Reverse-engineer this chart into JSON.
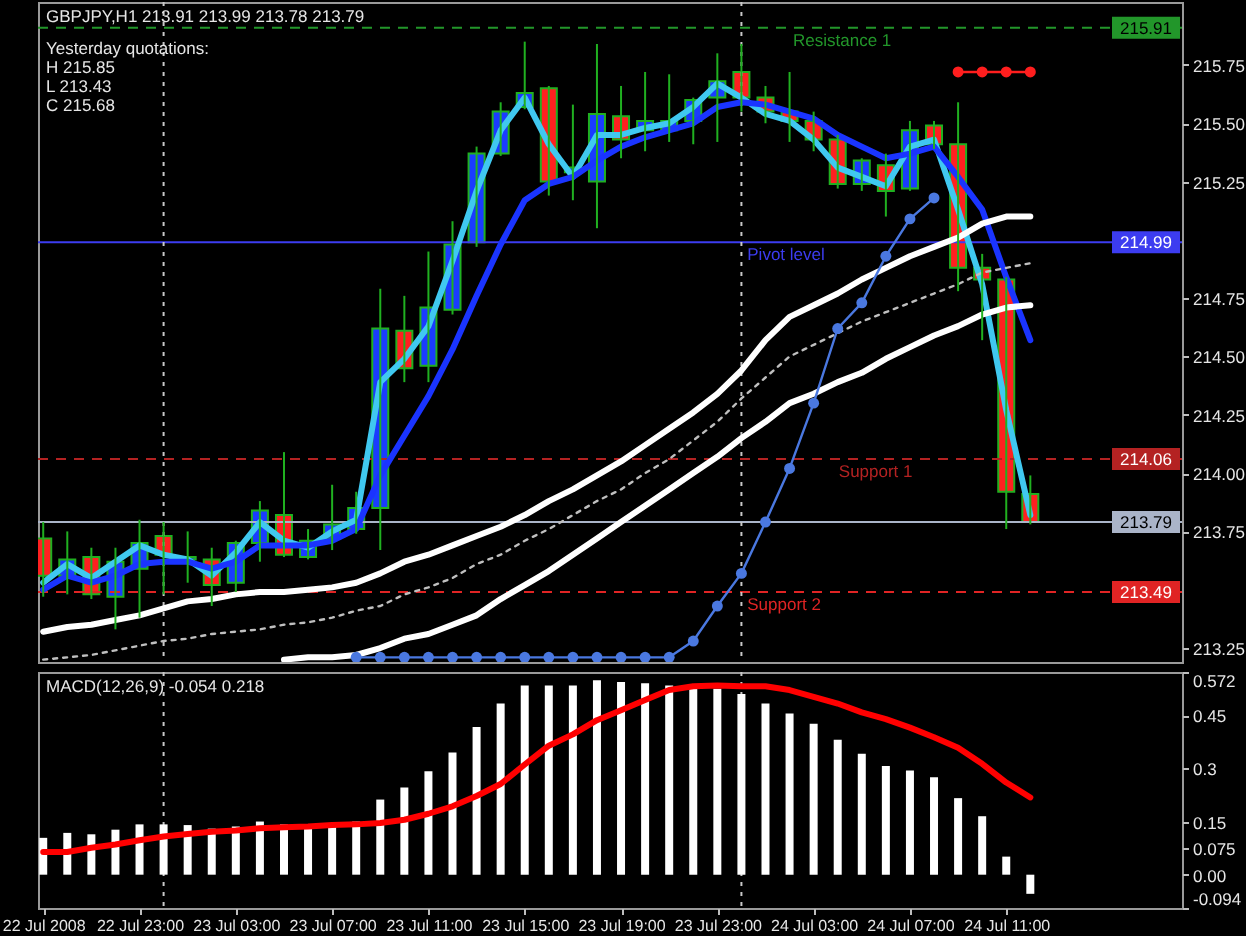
{
  "chart_data": [
    {
      "type": "candlestick",
      "title": "GBPJPY,H1 213.91 213.99 213.78 213.79",
      "annotations": [
        "Yesterday quotations:",
        "H 215.85",
        "L 213.43",
        "C 215.68",
        {
          "text": "215.91",
          "x": "2008-07-24T18:18",
          "y": 215.91
        },
        {
          "text": "214.99",
          "x": "2008-07-24T18:18",
          "y": 214.99
        },
        {
          "text": "214.06",
          "x": "2008-07-24T18:18",
          "y": 214.06
        },
        {
          "text": "213.79",
          "x": "2008-07-24T18:18",
          "y": 213.79
        },
        {
          "text": "213.49",
          "x": "2008-07-24T18:18",
          "y": 213.49
        }
      ],
      "x": [
        "2008-07-22T19:00",
        "2008-07-22T20:00",
        "2008-07-22T21:00",
        "2008-07-22T22:00",
        "2008-07-22T23:00",
        "2008-07-23T00:00",
        "2008-07-23T01:00",
        "2008-07-23T02:00",
        "2008-07-23T03:00",
        "2008-07-23T04:00",
        "2008-07-23T05:00",
        "2008-07-23T06:00",
        "2008-07-23T07:00",
        "2008-07-23T08:00",
        "2008-07-23T09:00",
        "2008-07-23T10:00",
        "2008-07-23T11:00",
        "2008-07-23T12:00",
        "2008-07-23T13:00",
        "2008-07-23T14:00",
        "2008-07-23T15:00",
        "2008-07-23T16:00",
        "2008-07-23T17:00",
        "2008-07-23T18:00",
        "2008-07-23T19:00",
        "2008-07-23T20:00",
        "2008-07-23T21:00",
        "2008-07-23T22:00",
        "2008-07-23T23:00",
        "2008-07-24T00:00",
        "2008-07-24T01:00",
        "2008-07-24T02:00",
        "2008-07-24T03:00",
        "2008-07-24T04:00",
        "2008-07-24T05:00",
        "2008-07-24T06:00",
        "2008-07-24T07:00",
        "2008-07-24T08:00",
        "2008-07-24T09:00",
        "2008-07-24T10:00",
        "2008-07-24T11:00",
        "2008-07-24T12:00"
      ],
      "ohlc": [
        [
          213.72,
          213.79,
          213.47,
          213.56
        ],
        [
          213.56,
          213.75,
          213.48,
          213.63
        ],
        [
          213.64,
          213.68,
          213.46,
          213.48
        ],
        [
          213.47,
          213.68,
          213.33,
          213.62
        ],
        [
          213.59,
          213.8,
          213.38,
          213.7
        ],
        [
          213.73,
          213.79,
          213.48,
          213.65
        ],
        [
          213.63,
          213.75,
          213.53,
          213.64
        ],
        [
          213.63,
          213.68,
          213.43,
          213.52
        ],
        [
          213.53,
          213.71,
          213.49,
          213.7
        ],
        [
          213.7,
          213.88,
          213.62,
          213.84
        ],
        [
          213.82,
          214.09,
          213.64,
          213.65
        ],
        [
          213.64,
          213.76,
          213.63,
          213.71
        ],
        [
          213.72,
          213.95,
          213.67,
          213.78
        ],
        [
          213.76,
          213.92,
          213.74,
          213.85
        ],
        [
          213.85,
          214.79,
          213.67,
          214.62
        ],
        [
          214.61,
          214.76,
          214.39,
          214.45
        ],
        [
          214.46,
          214.95,
          214.39,
          214.71
        ],
        [
          214.7,
          215.08,
          214.68,
          214.98
        ],
        [
          214.99,
          215.4,
          214.97,
          215.37
        ],
        [
          215.37,
          215.59,
          215.36,
          215.55
        ],
        [
          215.57,
          215.85,
          215.56,
          215.63
        ],
        [
          215.65,
          215.66,
          215.19,
          215.25
        ],
        [
          215.29,
          215.58,
          215.17,
          215.31
        ],
        [
          215.25,
          215.84,
          215.05,
          215.54
        ],
        [
          215.53,
          215.66,
          215.35,
          215.43
        ],
        [
          215.47,
          215.72,
          215.38,
          215.51
        ],
        [
          215.47,
          215.71,
          215.42,
          215.51
        ],
        [
          215.51,
          215.61,
          215.41,
          215.6
        ],
        [
          215.61,
          215.8,
          215.42,
          215.68
        ],
        [
          215.72,
          215.84,
          215.55,
          215.61
        ],
        [
          215.61,
          215.66,
          215.5,
          215.55
        ],
        [
          215.55,
          215.72,
          215.42,
          215.51
        ],
        [
          215.51,
          215.55,
          215.38,
          215.43
        ],
        [
          215.43,
          215.45,
          215.22,
          215.24
        ],
        [
          215.24,
          215.35,
          215.21,
          215.34
        ],
        [
          215.32,
          215.37,
          215.1,
          215.21
        ],
        [
          215.22,
          215.51,
          215.21,
          215.47
        ],
        [
          215.49,
          215.51,
          215.39,
          215.41
        ],
        [
          215.41,
          215.59,
          214.78,
          214.88
        ],
        [
          214.88,
          214.94,
          214.57,
          214.83
        ],
        [
          214.83,
          214.84,
          213.76,
          213.92
        ],
        [
          213.91,
          213.99,
          213.78,
          213.79
        ]
      ],
      "colors": [
        "#ff2020",
        "#1a3cff",
        "#ff2020",
        "#1a3cff",
        "#1a3cff",
        "#ff2020",
        "#1a3cff",
        "#ff2020",
        "#1a3cff",
        "#1a3cff",
        "#ff2020",
        "#1a3cff",
        "#1a3cff",
        "#1a3cff",
        "#1a3cff",
        "#ff2020",
        "#1a3cff",
        "#1a3cff",
        "#1a3cff",
        "#1a3cff",
        "#1a3cff",
        "#ff2020",
        "#1a3cff",
        "#1a3cff",
        "#ff2020",
        "#1a3cff",
        "#1a3cff",
        "#1a3cff",
        "#1a3cff",
        "#ff2020",
        "#ff2020",
        "#ff2020",
        "#ff2020",
        "#ff2020",
        "#1a3cff",
        "#ff2020",
        "#1a3cff",
        "#ff2020",
        "#ff2020",
        "#ff2020",
        "#ff2020",
        "#ff2020"
      ],
      "color": "#20b020",
      "series": [
        {
          "type": "line",
          "color": "#40c8f0",
          "values": [
            213.53,
            213.61,
            213.55,
            213.62,
            213.69,
            213.65,
            213.63,
            213.56,
            213.66,
            213.79,
            213.71,
            213.68,
            213.75,
            213.8,
            214.39,
            214.49,
            214.63,
            214.91,
            215.21,
            215.47,
            215.61,
            215.41,
            215.27,
            215.45,
            215.45,
            215.48,
            215.5,
            215.57,
            215.67,
            215.61,
            215.54,
            215.51,
            215.43,
            215.31,
            215.27,
            215.23,
            215.4,
            215.43,
            215.13,
            214.81,
            214.27,
            213.82
          ]
        },
        {
          "type": "line",
          "color": "#1a34ff",
          "values": [
            213.5,
            213.56,
            213.53,
            213.56,
            213.61,
            213.62,
            213.62,
            213.59,
            213.62,
            213.69,
            213.69,
            213.69,
            213.71,
            213.76,
            213.99,
            214.16,
            214.33,
            214.53,
            214.76,
            214.98,
            215.17,
            215.24,
            215.27,
            215.34,
            215.4,
            215.44,
            215.47,
            215.5,
            215.57,
            215.59,
            215.58,
            215.55,
            215.52,
            215.45,
            215.4,
            215.35,
            215.37,
            215.4,
            215.27,
            215.13,
            214.84,
            214.57
          ]
        },
        {
          "type": "line",
          "color": "#ffffff",
          "values": [
            213.32,
            213.34,
            213.35,
            213.37,
            213.39,
            213.42,
            213.45,
            213.46,
            213.48,
            213.49,
            213.49,
            213.5,
            213.51,
            213.53,
            213.57,
            213.62,
            213.65,
            213.69,
            213.73,
            213.77,
            213.82,
            213.88,
            213.93,
            213.99,
            214.05,
            214.12,
            214.19,
            214.26,
            214.34,
            214.44,
            214.57,
            214.67,
            214.72,
            214.77,
            214.83,
            214.88,
            214.93,
            214.97,
            215.01,
            215.07,
            215.1,
            215.1
          ]
        },
        {
          "type": "line",
          "color": "#bfbfbf",
          "line_style": "dotted",
          "values": [
            213.2,
            213.21,
            213.22,
            213.24,
            213.26,
            213.28,
            213.29,
            213.31,
            213.32,
            213.33,
            213.35,
            213.36,
            213.38,
            213.41,
            213.43,
            213.48,
            213.51,
            213.55,
            213.61,
            213.65,
            213.71,
            213.76,
            213.82,
            213.88,
            213.93,
            214.0,
            214.06,
            214.14,
            214.22,
            214.32,
            214.41,
            214.5,
            214.55,
            214.6,
            214.65,
            214.69,
            214.73,
            214.77,
            214.81,
            214.86,
            214.88,
            214.9
          ]
        },
        {
          "type": "line",
          "color": "#ffffff",
          "values": [
            null,
            null,
            null,
            null,
            null,
            null,
            null,
            null,
            null,
            null,
            213.2,
            213.21,
            213.21,
            213.22,
            213.25,
            213.29,
            213.31,
            213.35,
            213.39,
            213.46,
            213.52,
            213.58,
            213.65,
            213.72,
            213.79,
            213.86,
            213.93,
            214.0,
            214.07,
            214.15,
            214.22,
            214.3,
            214.34,
            214.39,
            214.43,
            214.49,
            214.54,
            214.59,
            214.63,
            214.68,
            214.71,
            214.72
          ]
        },
        {
          "type": "line",
          "color": "#4a78e0",
          "marker": "circle",
          "values": [
            null,
            null,
            null,
            null,
            null,
            null,
            null,
            null,
            null,
            null,
            null,
            null,
            null,
            213.21,
            213.21,
            213.21,
            213.21,
            213.21,
            213.21,
            213.21,
            213.21,
            213.21,
            213.21,
            213.21,
            213.21,
            213.21,
            213.21,
            213.28,
            213.43,
            213.57,
            213.79,
            214.02,
            214.3,
            214.62,
            214.73,
            214.93,
            215.09,
            215.18,
            null,
            null,
            null,
            null
          ]
        },
        {
          "type": "line",
          "color": "#ff1e1e",
          "marker": "circle",
          "values": [
            null,
            null,
            null,
            null,
            null,
            null,
            null,
            null,
            null,
            null,
            null,
            null,
            null,
            null,
            null,
            null,
            null,
            null,
            null,
            null,
            null,
            null,
            null,
            null,
            null,
            null,
            null,
            null,
            null,
            null,
            null,
            null,
            null,
            null,
            null,
            null,
            null,
            null,
            215.72,
            215.72,
            215.72,
            215.72
          ]
        }
      ],
      "xlim": [
        "2008-07-22T18:47",
        "2008-07-24T18:18"
      ],
      "ylim": [
        213.19,
        216.02
      ],
      "yticks": [
        213.25,
        213.75,
        {
          "value": 214,
          "label": "214.00"
        },
        214.25,
        {
          "value": 214.5,
          "label": "214.50"
        },
        214.75,
        215.25,
        {
          "value": 215.5,
          "label": "215.50"
        },
        215.75
      ],
      "ref_lines": [
        {
          "axis": "y",
          "value": 215.91,
          "label": "Resistance 1",
          "color": "#22962a",
          "line_style": "dashed"
        },
        {
          "axis": "y",
          "value": 214.99,
          "label": "Pivot level",
          "color": "#3c3cf0",
          "line_style": "solid"
        },
        {
          "axis": "y",
          "value": 214.06,
          "label": "Support 1",
          "color": "#b42222",
          "line_style": "dashed"
        },
        {
          "axis": "y",
          "value": 213.49,
          "label": "Support 2",
          "color": "#e02424",
          "line_style": "dashed"
        },
        {
          "axis": "y",
          "value": 213.79,
          "color": "#aab4c8",
          "line_style": "solid"
        },
        {
          "axis": "x",
          "value": "2008-07-23T00:00",
          "color": "#c8c8c8",
          "line_style": "dotted"
        },
        {
          "axis": "x",
          "value": "2008-07-24T00:00",
          "color": "#c8c8c8",
          "line_style": "dotted"
        }
      ],
      "tick_labels": "y"
    },
    {
      "type": "bar",
      "title": "MACD(12,26,9) -0.054 0.218",
      "x": [
        "2008-07-22T19:00",
        "2008-07-22T20:00",
        "2008-07-22T21:00",
        "2008-07-22T22:00",
        "2008-07-22T23:00",
        "2008-07-23T00:00",
        "2008-07-23T01:00",
        "2008-07-23T02:00",
        "2008-07-23T03:00",
        "2008-07-23T04:00",
        "2008-07-23T05:00",
        "2008-07-23T06:00",
        "2008-07-23T07:00",
        "2008-07-23T08:00",
        "2008-07-23T09:00",
        "2008-07-23T10:00",
        "2008-07-23T11:00",
        "2008-07-23T12:00",
        "2008-07-23T13:00",
        "2008-07-23T14:00",
        "2008-07-23T15:00",
        "2008-07-23T16:00",
        "2008-07-23T17:00",
        "2008-07-23T18:00",
        "2008-07-23T19:00",
        "2008-07-23T20:00",
        "2008-07-23T21:00",
        "2008-07-23T22:00",
        "2008-07-23T23:00",
        "2008-07-24T00:00",
        "2008-07-24T01:00",
        "2008-07-24T02:00",
        "2008-07-24T03:00",
        "2008-07-24T04:00",
        "2008-07-24T05:00",
        "2008-07-24T06:00",
        "2008-07-24T07:00",
        "2008-07-24T08:00",
        "2008-07-24T09:00",
        "2008-07-24T10:00",
        "2008-07-24T11:00",
        "2008-07-24T12:00"
      ],
      "series": [
        {
          "color": "#ffffff",
          "values": [
            0.104,
            0.118,
            0.114,
            0.127,
            0.142,
            0.142,
            0.14,
            0.13,
            0.136,
            0.15,
            0.142,
            0.132,
            0.14,
            0.15,
            0.212,
            0.246,
            0.292,
            0.345,
            0.417,
            0.483,
            0.534,
            0.534,
            0.534,
            0.549,
            0.544,
            0.54,
            0.534,
            0.534,
            0.525,
            0.51,
            0.483,
            0.455,
            0.426,
            0.381,
            0.341,
            0.307,
            0.294,
            0.275,
            0.216,
            0.165,
            0.051,
            -0.054
          ]
        },
        {
          "type": "line",
          "color": "#ff0000",
          "values": [
            0.064,
            0.064,
            0.076,
            0.085,
            0.097,
            0.108,
            0.115,
            0.121,
            0.125,
            0.131,
            0.134,
            0.136,
            0.14,
            0.142,
            0.146,
            0.155,
            0.172,
            0.193,
            0.222,
            0.256,
            0.311,
            0.364,
            0.396,
            0.436,
            0.464,
            0.493,
            0.521,
            0.532,
            0.534,
            0.532,
            0.532,
            0.521,
            0.502,
            0.483,
            0.458,
            0.439,
            0.415,
            0.388,
            0.358,
            0.313,
            0.26,
            0.218
          ]
        }
      ],
      "xlim": [
        "2008-07-22T18:47",
        "2008-07-24T18:18"
      ],
      "xticks": [
        {
          "value": "2008-07-22T19:00",
          "label": "22 Jul 2008"
        },
        {
          "value": "2008-07-22T23:00",
          "label": "22 Jul 23:00"
        },
        {
          "value": "2008-07-23T03:00",
          "label": "23 Jul 03:00"
        },
        {
          "value": "2008-07-23T07:00",
          "label": "23 Jul 07:00"
        },
        {
          "value": "2008-07-23T11:00",
          "label": "23 Jul 11:00"
        },
        {
          "value": "2008-07-23T15:00",
          "label": "23 Jul 15:00"
        },
        {
          "value": "2008-07-23T19:00",
          "label": "23 Jul 19:00"
        },
        {
          "value": "2008-07-23T23:00",
          "label": "23 Jul 23:00"
        },
        {
          "value": "2008-07-24T03:00",
          "label": "24 Jul 03:00"
        },
        {
          "value": "2008-07-24T07:00",
          "label": "24 Jul 07:00"
        },
        {
          "value": "2008-07-24T11:00",
          "label": "24 Jul 11:00"
        }
      ],
      "ylim": [
        -0.094,
        0.572
      ],
      "yticks": [
        0.572,
        0.45,
        0.3,
        0.15,
        0.075,
        {
          "value": 0,
          "label": "0.00"
        },
        -0.094
      ],
      "ref_lines": [
        {
          "axis": "x",
          "value": "2008-07-23T00:00",
          "color": "#c8c8c8",
          "line_style": "dotted"
        },
        {
          "axis": "x",
          "value": "2008-07-24T00:00",
          "color": "#c8c8c8",
          "line_style": "dotted"
        }
      ]
    }
  ]
}
